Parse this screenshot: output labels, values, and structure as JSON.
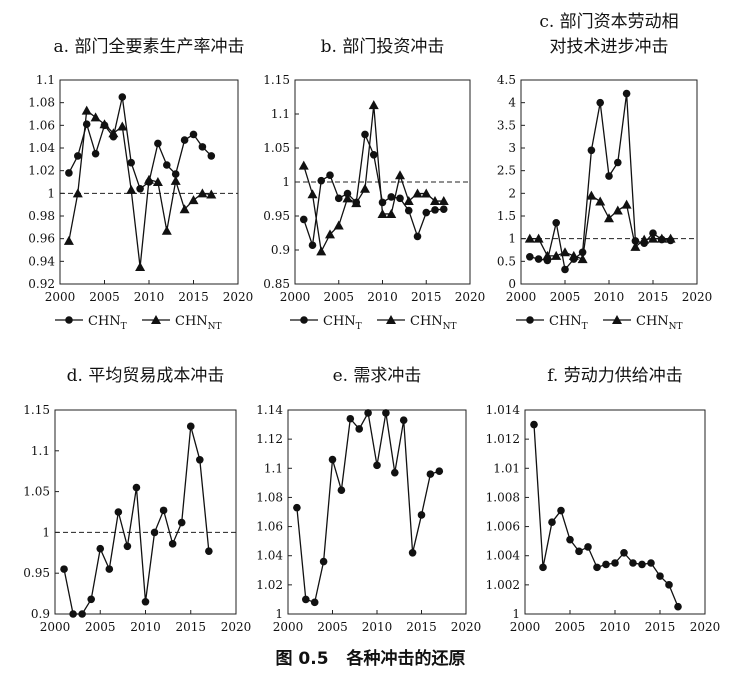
{
  "caption": {
    "label": "图 0.5",
    "text": "各种冲击的还原"
  },
  "chart_data": [
    {
      "type": "line",
      "title": "a. 部门全要素生产率冲击",
      "x": [
        2001,
        2002,
        2003,
        2004,
        2005,
        2006,
        2007,
        2008,
        2009,
        2010,
        2011,
        2012,
        2013,
        2014,
        2015,
        2016,
        2017
      ],
      "xlim": [
        2000,
        2020
      ],
      "xticks": [
        "2000",
        "2005",
        "2010",
        "2015",
        "2020"
      ],
      "ylim": [
        0.92,
        1.1
      ],
      "yticks": [
        "0.92",
        "0.94",
        "0.96",
        "0.98",
        "1",
        "1.02",
        "1.04",
        "1.06",
        "1.08",
        "1.1"
      ],
      "ref_line": 1,
      "legend_placement": "bottom",
      "series": [
        {
          "name": "CHN",
          "sub": "T",
          "marker": "circle",
          "values": [
            1.018,
            1.033,
            1.061,
            1.035,
            1.06,
            1.05,
            1.085,
            1.027,
            1.004,
            1.01,
            1.044,
            1.025,
            1.017,
            1.047,
            1.052,
            1.041,
            1.033
          ]
        },
        {
          "name": "CHN",
          "sub": "NT",
          "marker": "triangle",
          "values": [
            0.958,
            1.0,
            1.073,
            1.067,
            1.061,
            1.053,
            1.059,
            1.003,
            0.935,
            1.012,
            1.01,
            0.967,
            1.011,
            0.986,
            0.994,
            1.0,
            0.999
          ]
        }
      ]
    },
    {
      "type": "line",
      "title": "b. 部门投资冲击",
      "x": [
        2001,
        2002,
        2003,
        2004,
        2005,
        2006,
        2007,
        2008,
        2009,
        2010,
        2011,
        2012,
        2013,
        2014,
        2015,
        2016,
        2017
      ],
      "xlim": [
        2000,
        2020
      ],
      "xticks": [
        "2000",
        "2005",
        "2010",
        "2015",
        "2020"
      ],
      "ylim": [
        0.85,
        1.15
      ],
      "yticks": [
        "0.85",
        "0.9",
        "0.95",
        "1",
        "1.05",
        "1.1",
        "1.15"
      ],
      "ref_line": 1,
      "legend_placement": "bottom",
      "series": [
        {
          "name": "CHN",
          "sub": "T",
          "marker": "circle",
          "values": [
            0.945,
            0.907,
            1.002,
            1.01,
            0.976,
            0.983,
            0.97,
            1.07,
            1.04,
            0.97,
            0.978,
            0.976,
            0.958,
            0.92,
            0.955,
            0.959,
            0.96
          ]
        },
        {
          "name": "CHN",
          "sub": "NT",
          "marker": "triangle",
          "values": [
            1.024,
            0.982,
            0.898,
            0.923,
            0.936,
            0.976,
            0.969,
            0.99,
            1.113,
            0.953,
            0.953,
            1.01,
            0.972,
            0.983,
            0.983,
            0.972,
            0.972
          ]
        }
      ]
    },
    {
      "type": "line",
      "title": "c. 部门资本劳动相",
      "title2": "对技术进步冲击",
      "x": [
        2001,
        2002,
        2003,
        2004,
        2005,
        2006,
        2007,
        2008,
        2009,
        2010,
        2011,
        2012,
        2013,
        2014,
        2015,
        2016,
        2017
      ],
      "xlim": [
        2000,
        2020
      ],
      "xticks": [
        "2000",
        "2005",
        "2010",
        "2015",
        "2020"
      ],
      "ylim": [
        0,
        4.5
      ],
      "yticks": [
        "0",
        "0.5",
        "1",
        "1.5",
        "2",
        "2.5",
        "3",
        "3.5",
        "4",
        "4.5"
      ],
      "ref_line": 1,
      "legend_placement": "bottom",
      "series": [
        {
          "name": "CHN",
          "sub": "T",
          "marker": "circle",
          "values": [
            0.6,
            0.55,
            0.52,
            1.35,
            0.32,
            0.55,
            0.7,
            2.95,
            4.0,
            2.38,
            2.68,
            4.2,
            0.95,
            0.9,
            1.12,
            0.98,
            0.96
          ]
        },
        {
          "name": "CHN",
          "sub": "NT",
          "marker": "triangle",
          "values": [
            1.0,
            1.0,
            0.62,
            0.62,
            0.7,
            0.62,
            0.55,
            1.95,
            1.82,
            1.45,
            1.62,
            1.75,
            0.82,
            0.98,
            1.0,
            1.0,
            1.0
          ]
        }
      ]
    },
    {
      "type": "line",
      "title": "d. 平均贸易成本冲击",
      "x": [
        2001,
        2002,
        2003,
        2004,
        2005,
        2006,
        2007,
        2008,
        2009,
        2010,
        2011,
        2012,
        2013,
        2014,
        2015,
        2016,
        2017
      ],
      "xlim": [
        2000,
        2020
      ],
      "xticks": [
        "2000",
        "2005",
        "2010",
        "2015",
        "2020"
      ],
      "ylim": [
        0.9,
        1.15
      ],
      "yticks": [
        "0.9",
        "0.95",
        "1",
        "1.05",
        "1.1",
        "1.15"
      ],
      "ref_line": 1,
      "series": [
        {
          "marker": "circle",
          "values": [
            0.955,
            0.9,
            0.9,
            0.918,
            0.98,
            0.955,
            1.025,
            0.983,
            1.055,
            0.915,
            1.0,
            1.027,
            0.986,
            1.012,
            1.13,
            1.089,
            0.977
          ]
        }
      ]
    },
    {
      "type": "line",
      "title": "e. 需求冲击",
      "x": [
        2001,
        2002,
        2003,
        2004,
        2005,
        2006,
        2007,
        2008,
        2009,
        2010,
        2011,
        2012,
        2013,
        2014,
        2015,
        2016,
        2017
      ],
      "xlim": [
        2000,
        2020
      ],
      "xticks": [
        "2000",
        "2005",
        "2010",
        "2015",
        "2020"
      ],
      "ylim": [
        1,
        1.14
      ],
      "yticks": [
        "1",
        "1.02",
        "1.04",
        "1.06",
        "1.08",
        "1.1",
        "1.12",
        "1.14"
      ],
      "ref_line": 1,
      "series": [
        {
          "marker": "circle",
          "values": [
            1.073,
            1.01,
            1.008,
            1.036,
            1.106,
            1.085,
            1.134,
            1.127,
            1.138,
            1.102,
            1.138,
            1.097,
            1.133,
            1.042,
            1.068,
            1.096,
            1.098
          ]
        }
      ]
    },
    {
      "type": "line",
      "title": "f. 劳动力供给冲击",
      "x": [
        2001,
        2002,
        2003,
        2004,
        2005,
        2006,
        2007,
        2008,
        2009,
        2010,
        2011,
        2012,
        2013,
        2014,
        2015,
        2016,
        2017
      ],
      "xlim": [
        2000,
        2020
      ],
      "xticks": [
        "2000",
        "2005",
        "2010",
        "2015",
        "2020"
      ],
      "ylim": [
        1,
        1.014
      ],
      "yticks": [
        "1",
        "1.002",
        "1.004",
        "1.006",
        "1.008",
        "1.01",
        "1.012",
        "1.014"
      ],
      "ref_line": 1,
      "series": [
        {
          "marker": "circle",
          "values": [
            1.013,
            1.0032,
            1.0063,
            1.0071,
            1.0051,
            1.0043,
            1.0046,
            1.0032,
            1.0034,
            1.0035,
            1.0042,
            1.0035,
            1.0034,
            1.0035,
            1.0026,
            1.002,
            1.0005
          ]
        }
      ]
    }
  ]
}
